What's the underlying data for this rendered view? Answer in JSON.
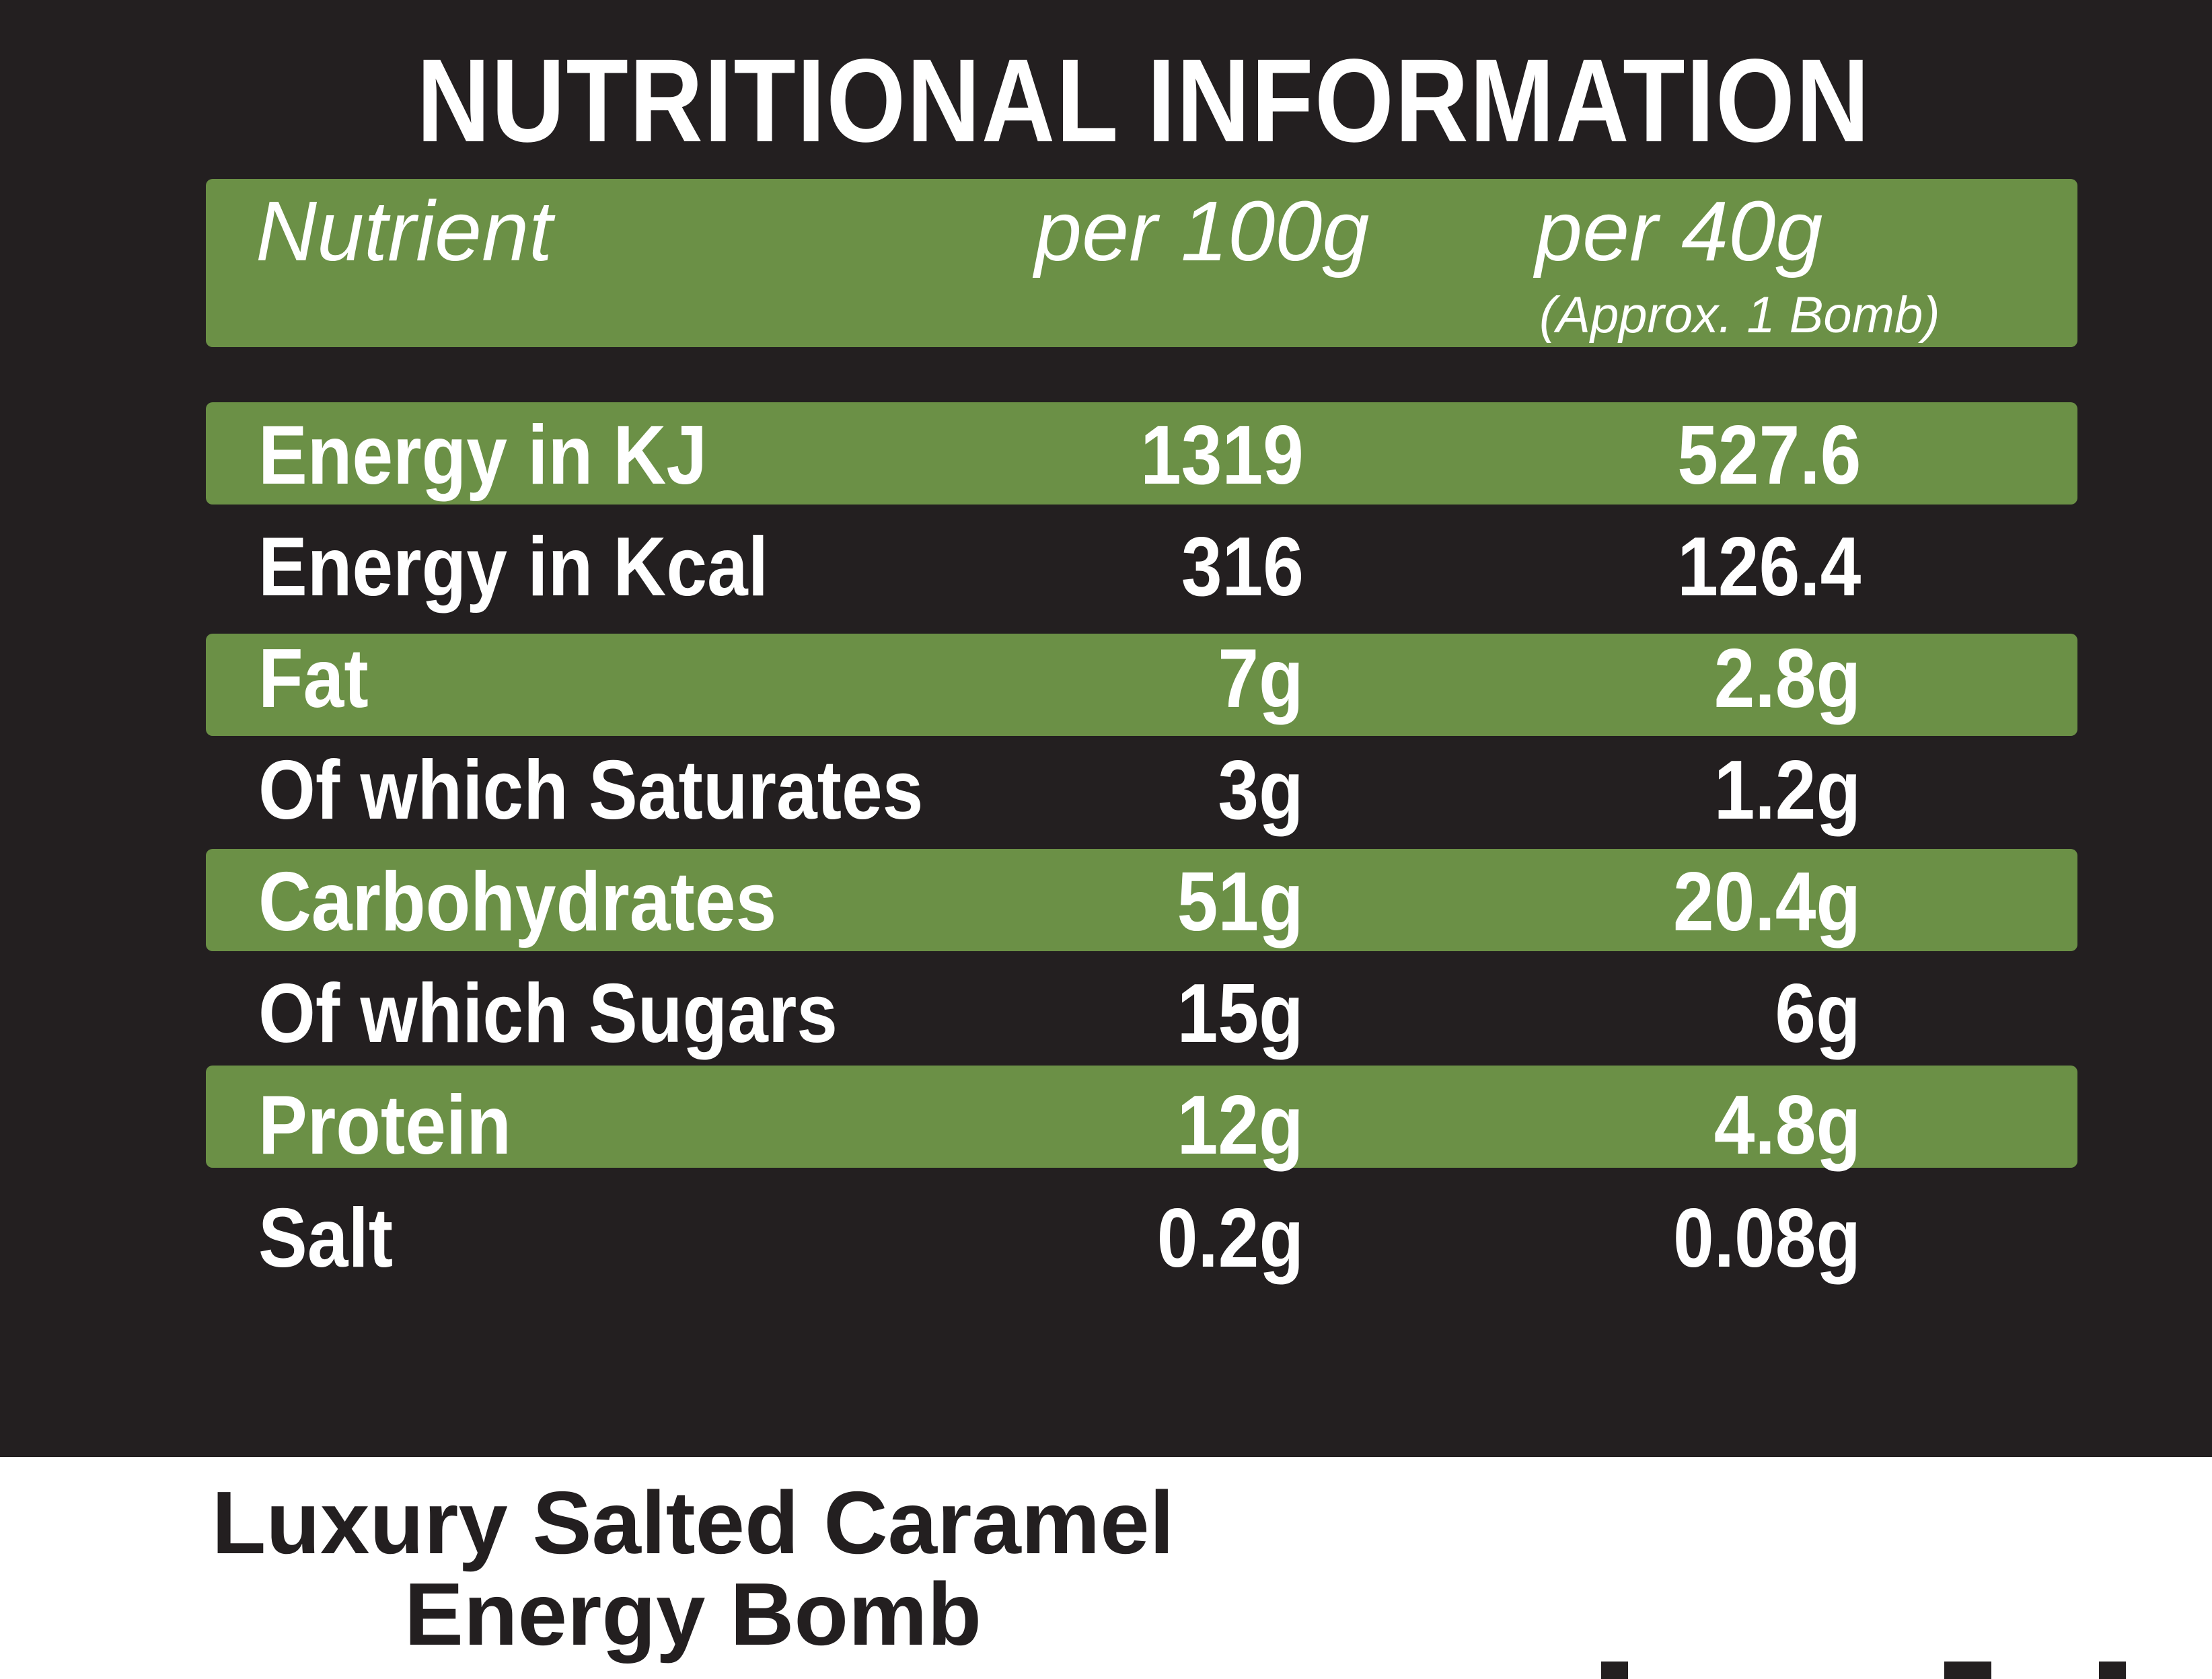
{
  "title": "NUTRITIONAL INFORMATION",
  "header": {
    "nutrient": "Nutrient",
    "per_100g": "per 100g",
    "per_40g": "per 40g",
    "per_40g_note": "(Approx. 1 Bomb)"
  },
  "rows": [
    {
      "name": "Energy in KJ",
      "per_100g": "1319",
      "per_40g": "527.6",
      "highlighted": true
    },
    {
      "name": "Energy in Kcal",
      "per_100g": "316",
      "per_40g": "126.4",
      "highlighted": false
    },
    {
      "name": "Fat",
      "per_100g": "7g",
      "per_40g": "2.8g",
      "highlighted": true
    },
    {
      "name": "Of which Saturates",
      "per_100g": "3g",
      "per_40g": "1.2g",
      "highlighted": false
    },
    {
      "name": "Carbohydrates",
      "per_100g": "51g",
      "per_40g": "20.4g",
      "highlighted": true
    },
    {
      "name": "Of which Sugars",
      "per_100g": "15g",
      "per_40g": "6g",
      "highlighted": false
    },
    {
      "name": "Protein",
      "per_100g": "12g",
      "per_40g": "4.8g",
      "highlighted": true
    },
    {
      "name": "Salt",
      "per_100g": "0.2g",
      "per_40g": "0.08g",
      "highlighted": false
    }
  ],
  "product": {
    "line1": "Luxury Salted Caramel",
    "line2": "Energy Bomb"
  },
  "colors": {
    "panel_background": "#231f20",
    "band_green": "#6b9046",
    "text_light": "#ffffff",
    "text_dark": "#231f20"
  }
}
